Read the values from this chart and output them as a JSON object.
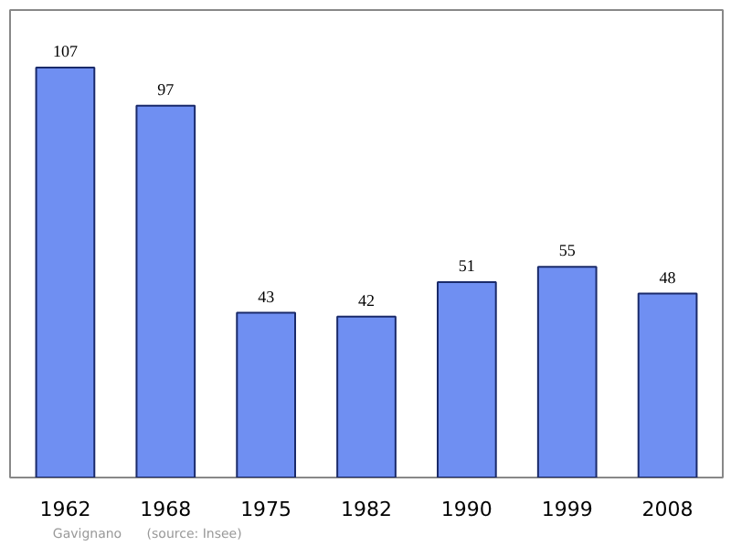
{
  "chart_data": {
    "type": "bar",
    "categories": [
      "1962",
      "1968",
      "1975",
      "1982",
      "1990",
      "1999",
      "2008"
    ],
    "values": [
      107,
      97,
      43,
      42,
      51,
      55,
      48
    ],
    "color": "#6f8ff2",
    "data_labels": true,
    "annotations": [
      "Gavignano",
      "(source: Insee)"
    ]
  }
}
